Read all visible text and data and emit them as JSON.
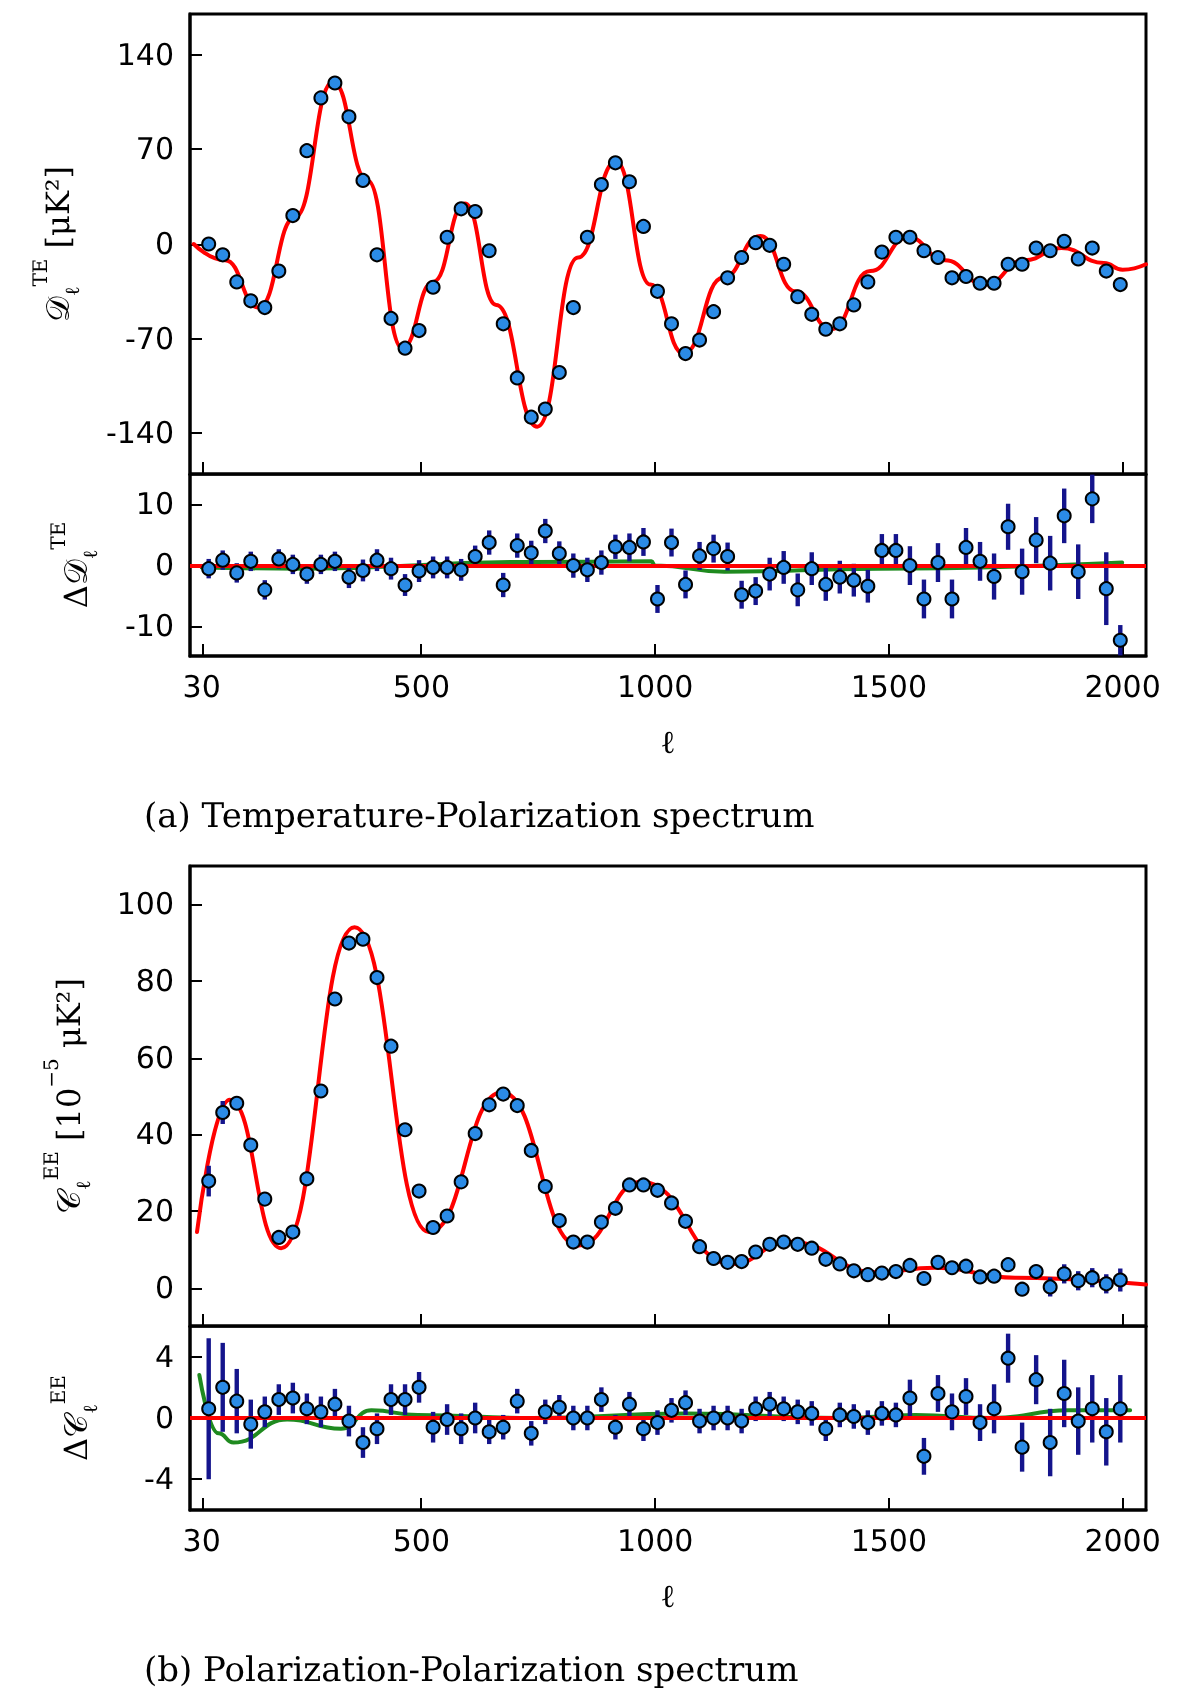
{
  "chart_data": [
    {
      "type": "line",
      "ylabel": "𝒟$_{ℓ}$$^{TE}$ [μK²]",
      "xlim": [
        5,
        2050
      ],
      "xticks": [
        30,
        500,
        1000,
        1500,
        2000
      ],
      "ylim": [
        -170,
        170
      ],
      "yticks": [
        -140,
        -70,
        0,
        70,
        140
      ],
      "tick_labels": "y",
      "grid": false,
      "x": [
        45,
        75,
        105,
        135,
        165,
        195,
        225,
        255,
        285,
        315,
        345,
        375,
        405,
        435,
        465,
        495,
        525,
        555,
        585,
        615,
        645,
        675,
        705,
        735,
        765,
        795,
        825,
        855,
        885,
        915,
        945,
        975,
        1005,
        1035,
        1065,
        1095,
        1125,
        1155,
        1185,
        1215,
        1245,
        1275,
        1305,
        1335,
        1365,
        1395,
        1425,
        1455,
        1485,
        1515,
        1545,
        1575,
        1605,
        1635,
        1665,
        1695,
        1725,
        1755,
        1785,
        1815,
        1845,
        1875,
        1905,
        1935,
        1965,
        1995
      ],
      "series": [
        {
          "color": "#ff0000",
          "x": [
            13,
            80,
            152,
            230,
            311,
            385,
            459,
            525,
            593,
            660,
            748,
            835,
            916,
            990,
            1061,
            1145,
            1225,
            1300,
            1377,
            1460,
            1541,
            1620,
            1705,
            1790,
            1869,
            1960,
            2000,
            2050
          ],
          "values": [
            0,
            -12,
            -47,
            20,
            120,
            47,
            -77,
            -28,
            30,
            -45,
            -135,
            -10,
            61,
            -30,
            -81,
            -25,
            6,
            -35,
            -63,
            -20,
            5,
            -12,
            -30,
            -12,
            -3,
            -14,
            -19,
            -15
          ]
        },
        {
          "type": "scatter",
          "marker": "circle",
          "color": "#2b8be6",
          "values": [
            0,
            -8,
            -28,
            -42,
            -47,
            -20,
            21,
            69,
            108,
            119,
            94,
            47,
            -8,
            -55,
            -77,
            -64,
            -32,
            5,
            26,
            24,
            -5,
            -59,
            -99,
            -128,
            -122,
            -95,
            -47,
            5,
            44,
            60,
            46,
            13,
            -35,
            -59,
            -81,
            -71,
            -50,
            -25,
            -10,
            1,
            -1,
            -15,
            -39,
            -52,
            -63,
            -59,
            -45,
            -28,
            -6,
            5,
            5,
            -5,
            -10,
            -25,
            -24,
            -29,
            -29,
            -15,
            -15,
            -3,
            -5,
            2,
            -11,
            -3,
            -20,
            -30
          ]
        }
      ]
    },
    {
      "type": "scatter",
      "xlabel": "ℓ",
      "ylabel": "Δ𝒟$_{ℓ}$$^{TE}$",
      "xlim": [
        5,
        2050
      ],
      "xticks": [
        30,
        500,
        1000,
        1500,
        2000
      ],
      "ylim": [
        -15,
        15
      ],
      "yticks": [
        -10,
        0,
        10
      ],
      "grid": false,
      "ref_lines": [
        {
          "axis": "y",
          "value": 0,
          "color": "#ff0000"
        }
      ],
      "annotations": [
        "(a) Temperature-Polarization spectrum"
      ],
      "x": [
        45,
        75,
        105,
        135,
        165,
        195,
        225,
        255,
        285,
        315,
        345,
        375,
        405,
        435,
        465,
        495,
        525,
        555,
        585,
        615,
        645,
        675,
        705,
        735,
        765,
        795,
        825,
        855,
        885,
        915,
        945,
        975,
        1005,
        1035,
        1065,
        1095,
        1125,
        1155,
        1185,
        1215,
        1245,
        1275,
        1305,
        1335,
        1365,
        1395,
        1425,
        1455,
        1485,
        1515,
        1545,
        1575,
        1605,
        1635,
        1665,
        1695,
        1725,
        1755,
        1785,
        1815,
        1845,
        1875,
        1905,
        1935,
        1965,
        1995
      ],
      "series": [
        {
          "type": "line",
          "color": "#1f8a1f",
          "x": [
            30,
            246,
            738,
            992,
            1000,
            1148,
            1475,
            1999
          ],
          "values": [
            -0.4,
            -0.6,
            0.5,
            0.6,
            -0.1,
            -1.1,
            -0.6,
            0.4
          ]
        },
        {
          "marker": "circle",
          "color": "#2b8be6",
          "values": [
            -0.6,
            0.8,
            -1.3,
            0.6,
            -4.1,
            1.0,
            0.1,
            -1.5,
            0.1,
            0.6,
            -2.0,
            -0.9,
            0.8,
            -0.6,
            -3.3,
            -1.0,
            -0.4,
            -0.4,
            -0.8,
            1.4,
            3.7,
            -3.3,
            3.2,
            2.0,
            5.6,
            1.9,
            -0.1,
            -0.8,
            0.4,
            3.0,
            2.9,
            3.8,
            -5.6,
            3.7,
            -3.2,
            1.5,
            2.7,
            1.4,
            -4.9,
            -4.3,
            -1.5,
            -0.4,
            -4.1,
            -0.6,
            -3.2,
            -2.0,
            -2.5,
            -3.5,
            2.4,
            2.4,
            -0.1,
            -5.6,
            0.4,
            -5.6,
            2.9,
            0.6,
            -1.9,
            6.3,
            -1.1,
            4.1,
            0.3,
            8.1,
            -1.1,
            10.9,
            -3.9,
            -12.4
          ],
          "errors": [
            1.6,
            1.6,
            1.6,
            1.6,
            1.6,
            1.6,
            1.6,
            1.6,
            1.6,
            1.6,
            1.8,
            1.8,
            1.8,
            1.8,
            1.8,
            1.8,
            1.8,
            1.8,
            1.8,
            1.8,
            2.0,
            2.0,
            2.0,
            2.0,
            2.0,
            2.0,
            2.0,
            2.0,
            2.0,
            2.0,
            2.3,
            2.3,
            2.3,
            2.3,
            2.3,
            2.3,
            2.3,
            2.3,
            2.3,
            2.3,
            2.7,
            2.7,
            2.7,
            2.7,
            2.7,
            2.7,
            2.7,
            2.7,
            2.7,
            2.7,
            3.2,
            3.2,
            3.2,
            3.2,
            3.2,
            3.2,
            3.8,
            3.8,
            3.8,
            3.8,
            4.5,
            4.5,
            4.5,
            4,
            6,
            2.5
          ]
        }
      ]
    },
    {
      "type": "line",
      "ylabel": "𝒞$_{ℓ}$$^{EE}$ [10$^{−5}$ μK²]",
      "xlim": [
        5,
        2050
      ],
      "xticks": [
        30,
        500,
        1000,
        1500,
        2000
      ],
      "ylim": [
        -10,
        110
      ],
      "yticks": [
        0,
        20,
        40,
        60,
        80,
        100
      ],
      "tick_labels": "y",
      "grid": false,
      "x": [
        45,
        75,
        105,
        135,
        165,
        195,
        225,
        255,
        285,
        315,
        345,
        375,
        405,
        435,
        465,
        495,
        525,
        555,
        585,
        615,
        645,
        675,
        705,
        735,
        765,
        795,
        825,
        855,
        885,
        915,
        945,
        975,
        1005,
        1035,
        1065,
        1095,
        1125,
        1155,
        1185,
        1215,
        1245,
        1275,
        1305,
        1335,
        1365,
        1395,
        1425,
        1455,
        1485,
        1515,
        1545,
        1575,
        1605,
        1635,
        1665,
        1695,
        1725,
        1755,
        1785,
        1815,
        1845,
        1875,
        1905,
        1935,
        1965,
        1995
      ],
      "series": [
        {
          "color": "#ff0000",
          "x": [
            20,
            90,
            200,
            357,
            516,
            672,
            836,
            970,
            1164,
            1287,
            1475,
            1598,
            1770,
            2050
          ],
          "values": [
            14.5,
            49,
            10.3,
            94,
            14.5,
            51,
            11,
            27.6,
            6.2,
            12,
            4,
            5.2,
            2.6,
            0.8
          ]
        },
        {
          "type": "scatter",
          "marker": "circle",
          "color": "#2b8be6",
          "values": [
            27.8,
            45.7,
            48.1,
            37.2,
            23.1,
            13.1,
            14.5,
            28.4,
            51.3,
            75.3,
            89.9,
            90.9,
            80.9,
            63.0,
            41.2,
            25.2,
            15.7,
            18.7,
            27.6,
            40.2,
            47.7,
            50.5,
            47.5,
            35.8,
            26.4,
            17.5,
            11.9,
            11.9,
            17.1,
            20.7,
            26.8,
            26.8,
            25.4,
            22.1,
            17.3,
            10.7,
            7.6,
            6.6,
            6.8,
            9.3,
            11.3,
            11.9,
            11.3,
            10.3,
            7.4,
            6.2,
            4.4,
            3.4,
            3.8,
            4.2,
            5.8,
            2.4,
            6.6,
            5.2,
            5.6,
            2.8,
            3.0,
            6.0,
            -0.4,
            4.2,
            0.2,
            3.6,
            1.8,
            2.6,
            1.0,
            2.0
          ],
          "errors": [
            4,
            3,
            null,
            null,
            null,
            null,
            null,
            null,
            null,
            null,
            null,
            null,
            null,
            null,
            null,
            null,
            null,
            null,
            null,
            null,
            null,
            null,
            null,
            null,
            null,
            null,
            null,
            null,
            null,
            null,
            null,
            null,
            null,
            null,
            null,
            null,
            null,
            null,
            null,
            null,
            null,
            null,
            null,
            null,
            null,
            null,
            null,
            null,
            null,
            null,
            null,
            null,
            null,
            null,
            null,
            null,
            null,
            null,
            null,
            null,
            2.5,
            2.5,
            2.5,
            2.5,
            2.5,
            3
          ]
        }
      ]
    },
    {
      "type": "scatter",
      "xlabel": "ℓ",
      "ylabel": "Δ𝒞$_{ℓ}$$^{EE}$",
      "xlim": [
        5,
        2050
      ],
      "xticks": [
        30,
        500,
        1000,
        1500,
        2000
      ],
      "ylim": [
        -6,
        6
      ],
      "yticks": [
        -4,
        0,
        4
      ],
      "grid": false,
      "ref_lines": [
        {
          "axis": "y",
          "value": 0,
          "color": "#ff0000"
        }
      ],
      "annotations": [
        "(b) Polarization-Polarization spectrum"
      ],
      "x": [
        45,
        75,
        105,
        135,
        165,
        195,
        225,
        255,
        285,
        315,
        345,
        375,
        405,
        435,
        465,
        495,
        525,
        555,
        585,
        615,
        645,
        675,
        705,
        735,
        765,
        795,
        825,
        855,
        885,
        915,
        945,
        975,
        1005,
        1035,
        1065,
        1095,
        1125,
        1155,
        1185,
        1215,
        1245,
        1275,
        1305,
        1335,
        1365,
        1395,
        1425,
        1455,
        1485,
        1515,
        1545,
        1575,
        1605,
        1635,
        1665,
        1695,
        1725,
        1755,
        1785,
        1815,
        1845,
        1875,
        1905,
        1935,
        1965,
        1995
      ],
      "series": [
        {
          "type": "line",
          "color": "#1f8a1f",
          "x": [
            25,
            66,
            98,
            213,
            328,
            393,
            492,
            738,
            1066,
            1393,
            1557,
            1721,
            1885,
            2016
          ],
          "values": [
            2.8,
            -1.0,
            -1.6,
            -0.1,
            -0.7,
            0.5,
            0.2,
            0,
            0.3,
            0,
            0.2,
            0,
            0.5,
            0.5
          ]
        },
        {
          "marker": "circle",
          "color": "#2b8be6",
          "values": [
            0.6,
            2.0,
            1.1,
            -0.4,
            0.4,
            1.2,
            1.3,
            0.6,
            0.4,
            0.9,
            -0.2,
            -1.6,
            -0.7,
            1.2,
            1.2,
            2.0,
            -0.6,
            -0.1,
            -0.7,
            0,
            -0.9,
            -0.6,
            1.1,
            -1.0,
            0.4,
            0.7,
            0,
            0,
            1.2,
            -0.6,
            0.9,
            -0.7,
            -0.3,
            0.5,
            1.0,
            -0.2,
            0,
            0,
            -0.2,
            0.6,
            0.9,
            0.6,
            0.4,
            0.3,
            -0.7,
            0.2,
            0.1,
            -0.3,
            0.3,
            0.2,
            1.3,
            -2.5,
            1.6,
            0.4,
            1.4,
            -0.3,
            0.6,
            3.9,
            -1.9,
            2.5,
            -1.6,
            1.6,
            -0.2,
            0.6,
            -0.9,
            0.6
          ],
          "errors": [
            4.6,
            2.9,
            2.1,
            1.6,
            1.0,
            1.0,
            1.0,
            1.0,
            1.0,
            1.0,
            1.0,
            1.0,
            1.0,
            1.0,
            1.0,
            1.0,
            1.0,
            1.0,
            1.0,
            1.0,
            0.8,
            0.8,
            0.8,
            0.8,
            0.8,
            0.8,
            0.8,
            0.8,
            0.8,
            0.8,
            0.8,
            0.8,
            0.8,
            0.8,
            0.8,
            0.8,
            0.8,
            0.8,
            0.8,
            0.8,
            0.8,
            0.8,
            0.8,
            0.8,
            0.8,
            0.8,
            0.8,
            0.8,
            0.8,
            0.8,
            1.2,
            1.2,
            1.2,
            1.2,
            1.2,
            1.2,
            1.6,
            1.6,
            1.6,
            1.6,
            2.2,
            2.2,
            2.2,
            2.2,
            2.2,
            2.2
          ]
        }
      ]
    }
  ]
}
